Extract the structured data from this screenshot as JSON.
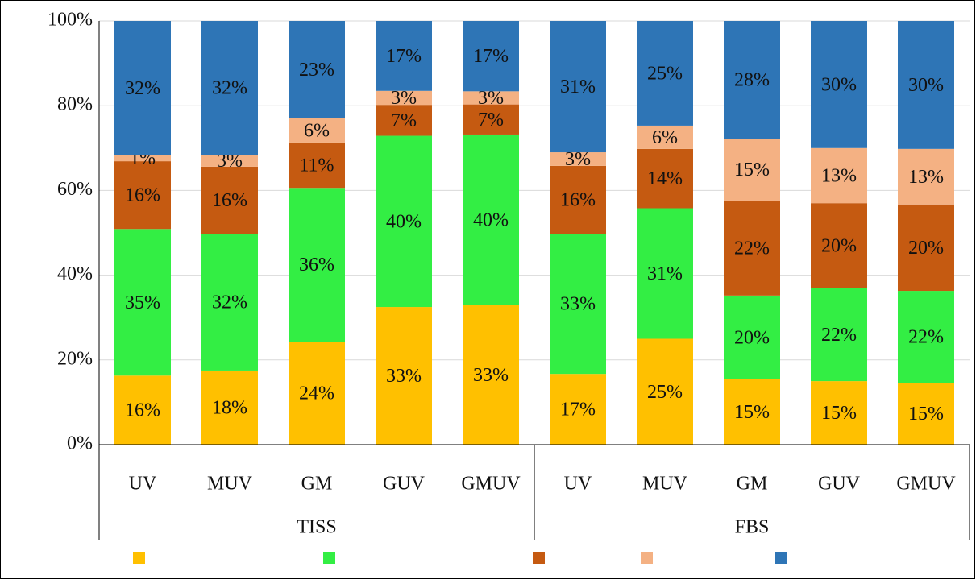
{
  "chart_data": {
    "type": "bar",
    "stacked": true,
    "groups": [
      {
        "name": "TISS",
        "categories": [
          "UV",
          "MUV",
          "GM",
          "GUV",
          "GMUV"
        ]
      },
      {
        "name": "FBS",
        "categories": [
          "UV",
          "MUV",
          "GM",
          "GUV",
          "GMUV"
        ]
      }
    ],
    "series": [
      {
        "color": "#ffc000",
        "values": [
          16.3,
          17.5,
          24.3,
          32.5,
          32.9,
          16.7,
          25.0,
          15.4,
          15.0,
          14.6
        ],
        "value_labels": [
          "16%",
          "18%",
          "24%",
          "33%",
          "33%",
          "17%",
          "25%",
          "15%",
          "15%",
          "15%"
        ]
      },
      {
        "color": "#33ee44",
        "values": [
          34.6,
          32.3,
          36.3,
          40.4,
          40.3,
          33.1,
          30.8,
          19.8,
          21.9,
          21.7
        ],
        "value_labels": [
          "35%",
          "32%",
          "36%",
          "40%",
          "40%",
          "33%",
          "31%",
          "20%",
          "22%",
          "22%"
        ]
      },
      {
        "color": "#c55a11",
        "values": [
          16.0,
          15.8,
          10.7,
          7.3,
          7.1,
          16.0,
          14.0,
          22.4,
          20.1,
          20.4
        ],
        "value_labels": [
          "16%",
          "16%",
          "11%",
          "7%",
          "7%",
          "16%",
          "14%",
          "22%",
          "20%",
          "20%"
        ]
      },
      {
        "color": "#f4b183",
        "values": [
          1.4,
          2.8,
          5.7,
          3.3,
          3.1,
          3.2,
          5.5,
          14.6,
          13.0,
          13.1
        ],
        "value_labels": [
          "1%",
          "3%",
          "6%",
          "3%",
          "3%",
          "3%",
          "6%",
          "15%",
          "13%",
          "13%"
        ]
      },
      {
        "color": "#2e75b6",
        "values": [
          31.7,
          31.6,
          23.0,
          16.5,
          16.6,
          31.0,
          24.7,
          27.8,
          30.0,
          30.2
        ],
        "value_labels": [
          "32%",
          "32%",
          "23%",
          "17%",
          "17%",
          "31%",
          "25%",
          "28%",
          "30%",
          "30%"
        ]
      }
    ],
    "ylim": [
      0,
      100
    ],
    "yticks": [
      {
        "value": 0,
        "label": "0%"
      },
      {
        "value": 20,
        "label": "20%"
      },
      {
        "value": 40,
        "label": "40%"
      },
      {
        "value": 60,
        "label": "60%"
      },
      {
        "value": 80,
        "label": "80%"
      },
      {
        "value": 100,
        "label": "100%"
      }
    ],
    "grid": true
  }
}
